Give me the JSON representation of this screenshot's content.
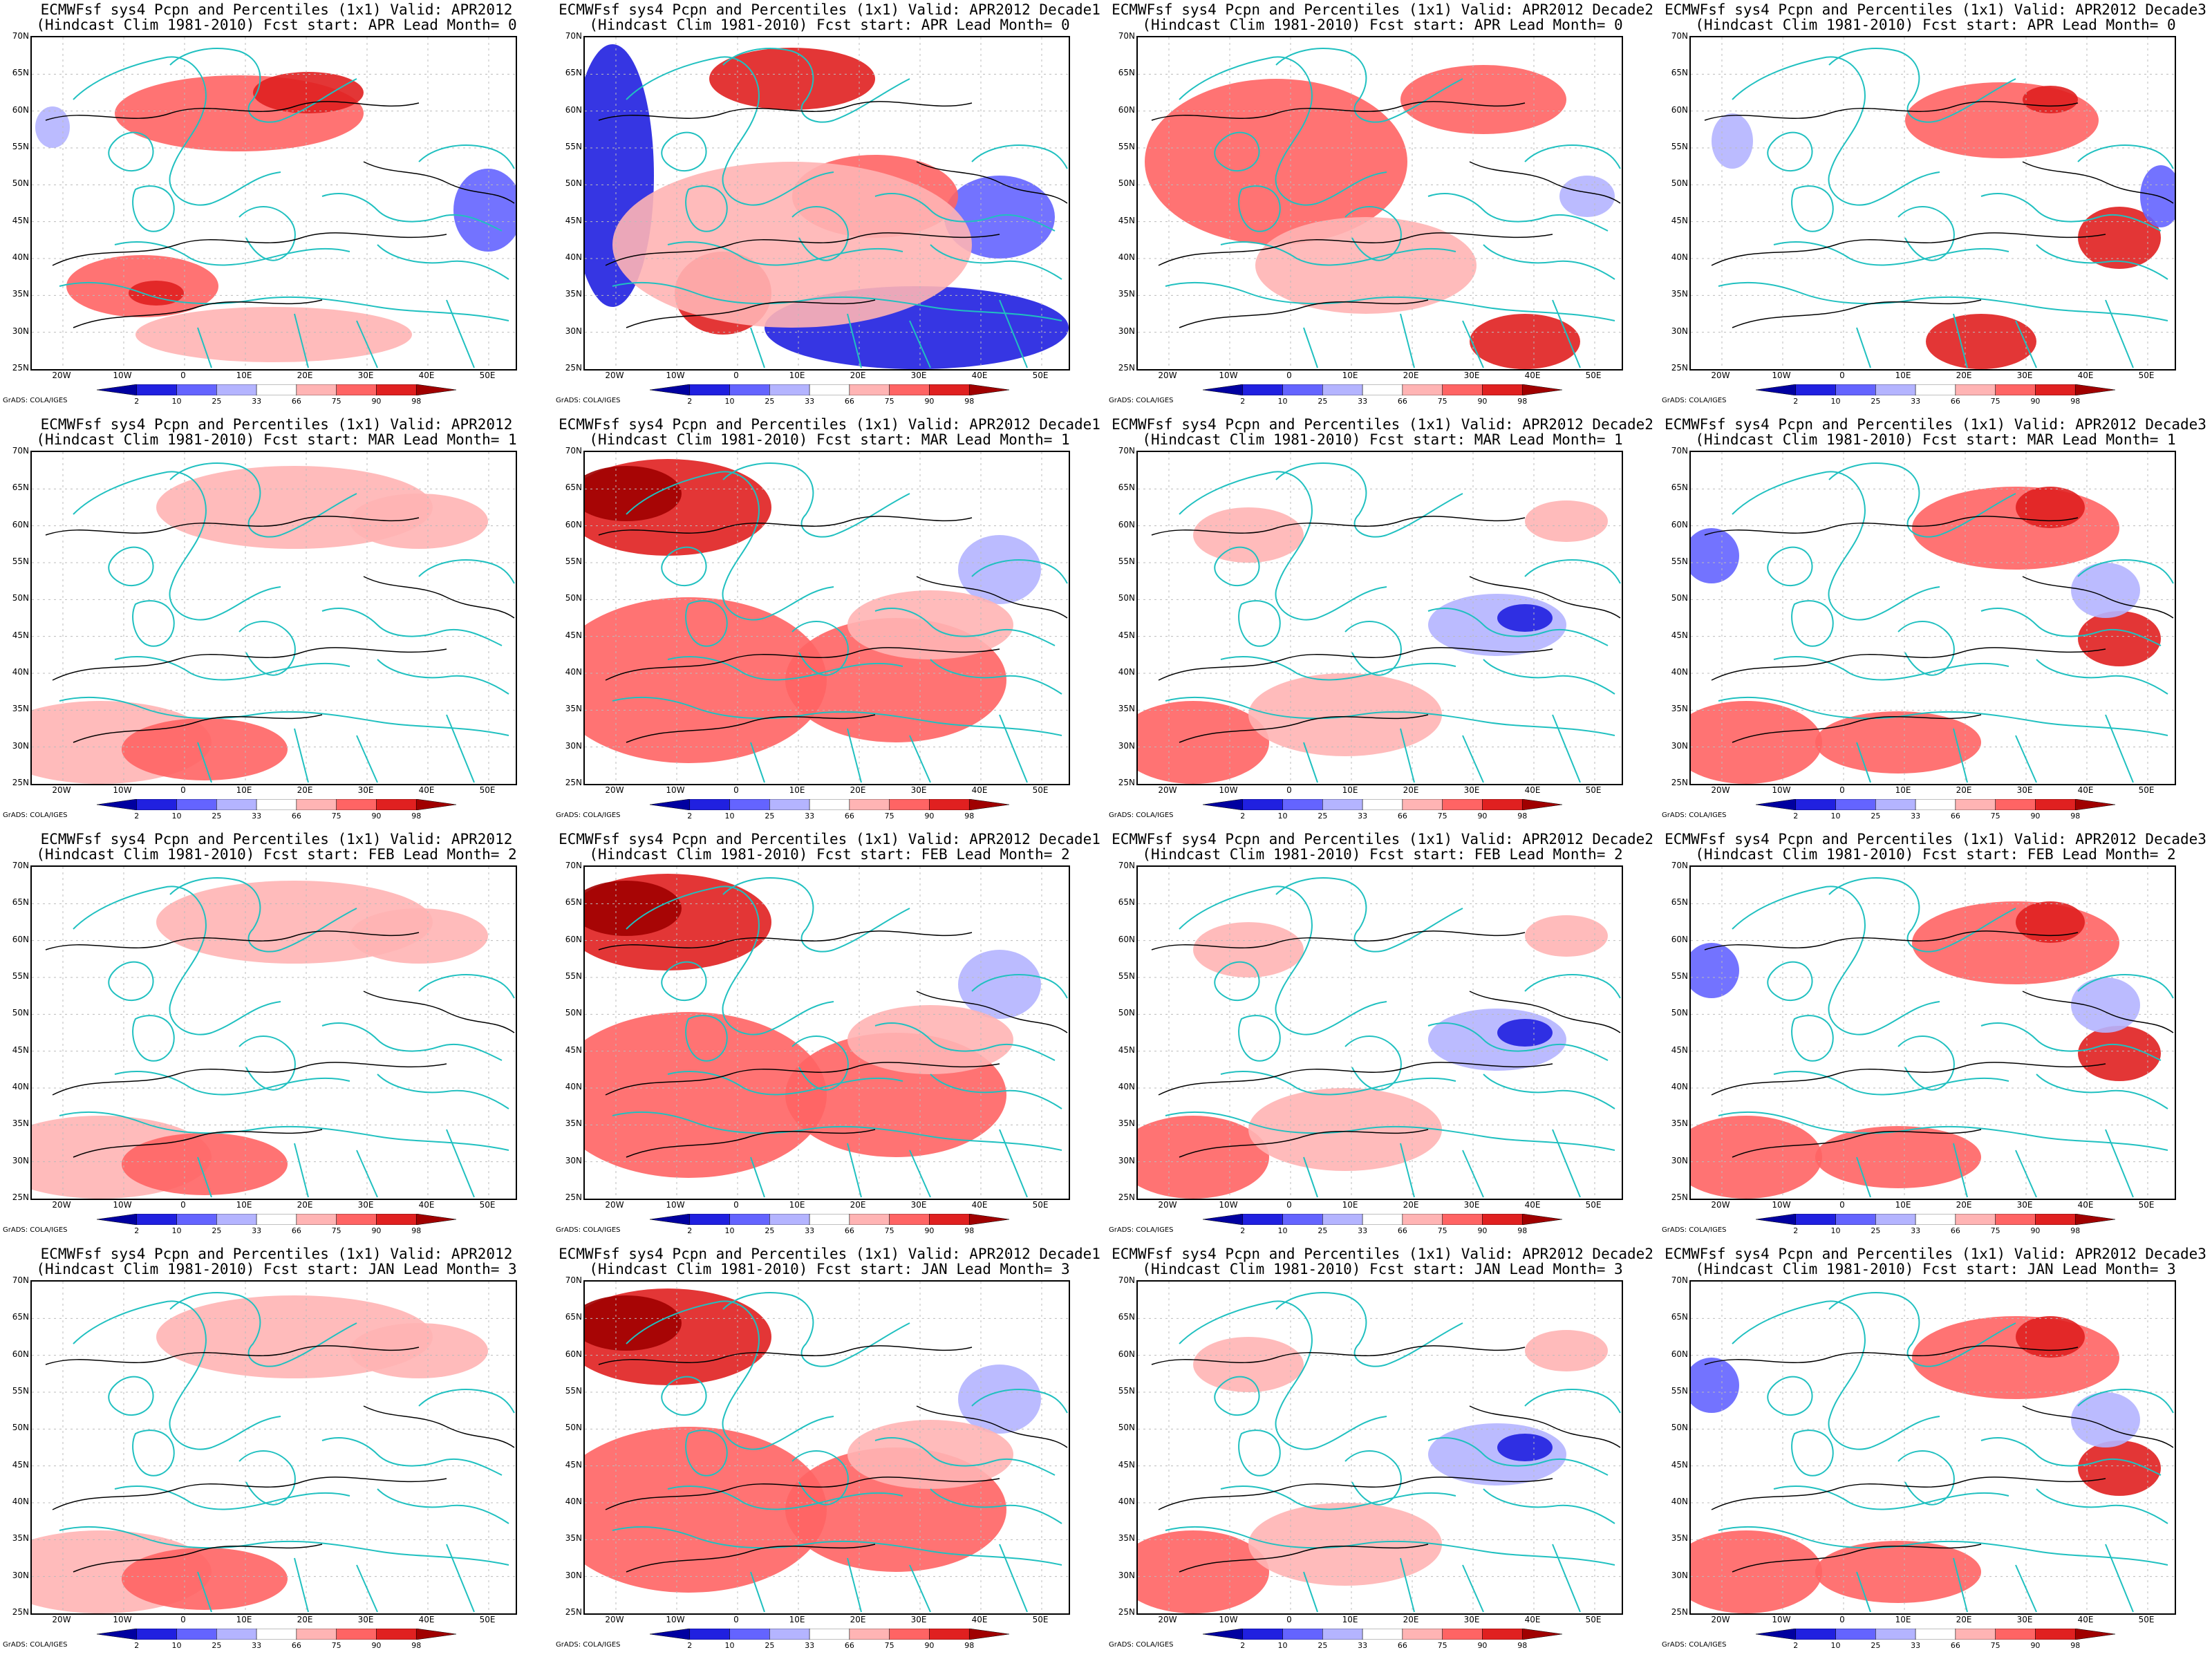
{
  "map_frame": {
    "lat_labels": [
      "70N",
      "65N",
      "60N",
      "55N",
      "50N",
      "45N",
      "40N",
      "35N",
      "30N",
      "25N"
    ],
    "lon_labels": [
      "20W",
      "10W",
      "0",
      "10E",
      "20E",
      "30E",
      "40E",
      "50E"
    ]
  },
  "colorbar": {
    "levels": [
      "2",
      "10",
      "25",
      "33",
      "66",
      "75",
      "90",
      "98"
    ],
    "colors": [
      "#0000a0",
      "#2020e0",
      "#6464ff",
      "#b4b4ff",
      "#ffffff",
      "#ffb4b4",
      "#ff6464",
      "#e02020",
      "#a00000"
    ]
  },
  "credit": "GrADS: COLA/IGES",
  "colors": {
    "coast": "#20c0c0",
    "contour": "#000000",
    "grid": "#bbbbbb"
  },
  "panels": [
    {
      "line1": "ECMWFsf sys4  Pcpn and Percentiles (1x1) Valid: APR2012",
      "line2": "(Hindcast Clim 1981-2010) Fcst start: APR  Lead Month= 0",
      "pattern": "A"
    },
    {
      "line1": "ECMWFsf sys4  Pcpn and Percentiles (1x1) Valid: APR2012 Decade1",
      "line2": "(Hindcast Clim 1981-2010) Fcst start: APR  Lead Month= 0",
      "pattern": "B"
    },
    {
      "line1": "ECMWFsf sys4  Pcpn and Percentiles (1x1) Valid: APR2012 Decade2",
      "line2": "(Hindcast Clim 1981-2010) Fcst start: APR  Lead Month= 0",
      "pattern": "C"
    },
    {
      "line1": "ECMWFsf sys4  Pcpn and Percentiles (1x1) Valid: APR2012 Decade3",
      "line2": "(Hindcast Clim 1981-2010) Fcst start: APR  Lead Month= 0",
      "pattern": "D"
    },
    {
      "line1": "ECMWFsf sys4  Pcpn and Percentiles (1x1) Valid: APR2012",
      "line2": "(Hindcast Clim 1981-2010) Fcst start: MAR  Lead Month= 1",
      "pattern": "E"
    },
    {
      "line1": "ECMWFsf sys4  Pcpn and Percentiles (1x1) Valid: APR2012 Decade1",
      "line2": "(Hindcast Clim 1981-2010) Fcst start: MAR  Lead Month= 1",
      "pattern": "F"
    },
    {
      "line1": "ECMWFsf sys4  Pcpn and Percentiles (1x1) Valid: APR2012 Decade2",
      "line2": "(Hindcast Clim 1981-2010) Fcst start: MAR  Lead Month= 1",
      "pattern": "G"
    },
    {
      "line1": "ECMWFsf sys4  Pcpn and Percentiles (1x1) Valid: APR2012 Decade3",
      "line2": "(Hindcast Clim 1981-2010) Fcst start: MAR  Lead Month= 1",
      "pattern": "H"
    },
    {
      "line1": "ECMWFsf sys4  Pcpn and Percentiles (1x1) Valid: APR2012",
      "line2": "(Hindcast Clim 1981-2010) Fcst start: FEB  Lead Month= 2",
      "pattern": "E"
    },
    {
      "line1": "ECMWFsf sys4  Pcpn and Percentiles (1x1) Valid: APR2012 Decade1",
      "line2": "(Hindcast Clim 1981-2010) Fcst start: FEB  Lead Month= 2",
      "pattern": "F"
    },
    {
      "line1": "ECMWFsf sys4  Pcpn and Percentiles (1x1) Valid: APR2012 Decade2",
      "line2": "(Hindcast Clim 1981-2010) Fcst start: FEB  Lead Month= 2",
      "pattern": "G"
    },
    {
      "line1": "ECMWFsf sys4  Pcpn and Percentiles (1x1) Valid: APR2012 Decade3",
      "line2": "(Hindcast Clim 1981-2010) Fcst start: FEB  Lead Month= 2",
      "pattern": "H"
    },
    {
      "line1": "ECMWFsf sys4  Pcpn and Percentiles (1x1) Valid: APR2012",
      "line2": "(Hindcast Clim 1981-2010) Fcst start: JAN  Lead Month= 3",
      "pattern": "E"
    },
    {
      "line1": "ECMWFsf sys4  Pcpn and Percentiles (1x1) Valid: APR2012 Decade1",
      "line2": "(Hindcast Clim 1981-2010) Fcst start: JAN  Lead Month= 3",
      "pattern": "F"
    },
    {
      "line1": "ECMWFsf sys4  Pcpn and Percentiles (1x1) Valid: APR2012 Decade2",
      "line2": "(Hindcast Clim 1981-2010) Fcst start: JAN  Lead Month= 3",
      "pattern": "G"
    },
    {
      "line1": "ECMWFsf sys4  Pcpn and Percentiles (1x1) Valid: APR2012 Decade3",
      "line2": "(Hindcast Clim 1981-2010) Fcst start: JAN  Lead Month= 3",
      "pattern": "H"
    }
  ]
}
